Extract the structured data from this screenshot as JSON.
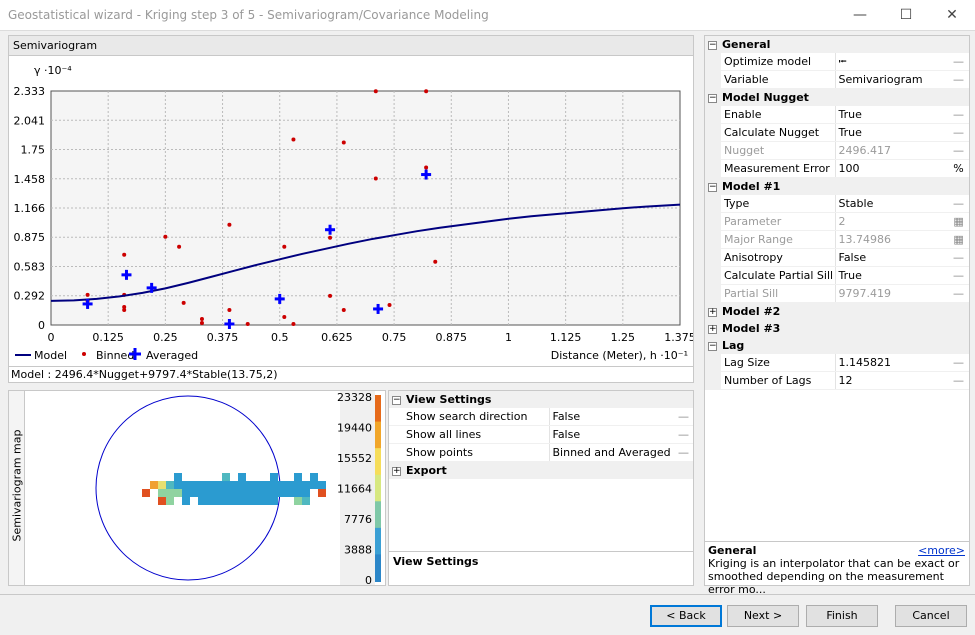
{
  "window": {
    "title": "Geostatistical wizard - Kriging step 3 of 5 - Semivariogram/Covariance Modeling"
  },
  "chart_panel": {
    "title": "Semivariogram"
  },
  "chart_data": {
    "type": "scatter",
    "title": "Semivariogram",
    "ylabel": "γ ·10⁻⁴",
    "xlabel": "Distance (Meter), h ·10⁻¹",
    "xlim": [
      0,
      1.375
    ],
    "ylim": [
      0,
      2.333
    ],
    "x_ticks": [
      "0",
      "0.125",
      "0.25",
      "0.375",
      "0.5",
      "0.625",
      "0.75",
      "0.875",
      "1",
      "1.125",
      "1.25",
      "1.375"
    ],
    "y_ticks": [
      "0",
      "0.292",
      "0.583",
      "0.875",
      "1.166",
      "1.458",
      "1.75",
      "2.041",
      "2.333"
    ],
    "x_tick_values": [
      0,
      0.125,
      0.25,
      0.375,
      0.5,
      0.625,
      0.75,
      0.875,
      1,
      1.125,
      1.25,
      1.375
    ],
    "y_tick_values": [
      0,
      0.292,
      0.583,
      0.875,
      1.166,
      1.458,
      1.75,
      2.041,
      2.333
    ],
    "grid": true,
    "legend_items": [
      "Model",
      "Binned",
      "Averaged"
    ],
    "binned": [
      [
        0.08,
        0.3
      ],
      [
        0.08,
        0.24
      ],
      [
        0.16,
        0.7
      ],
      [
        0.16,
        0.3
      ],
      [
        0.16,
        0.18
      ],
      [
        0.16,
        0.15
      ],
      [
        0.25,
        0.88
      ],
      [
        0.28,
        0.78
      ],
      [
        0.29,
        0.22
      ],
      [
        0.33,
        0.06
      ],
      [
        0.33,
        0.02
      ],
      [
        0.39,
        1.0
      ],
      [
        0.39,
        0.15
      ],
      [
        0.43,
        0.01
      ],
      [
        0.51,
        0.78
      ],
      [
        0.51,
        0.08
      ],
      [
        0.53,
        1.85
      ],
      [
        0.53,
        0.01
      ],
      [
        0.61,
        0.87
      ],
      [
        0.61,
        0.29
      ],
      [
        0.64,
        1.82
      ],
      [
        0.64,
        0.15
      ],
      [
        0.71,
        2.33
      ],
      [
        0.71,
        1.46
      ],
      [
        0.74,
        0.2
      ],
      [
        0.82,
        2.33
      ],
      [
        0.82,
        1.57
      ],
      [
        0.84,
        0.63
      ]
    ],
    "averaged": [
      [
        0.08,
        0.21
      ],
      [
        0.165,
        0.5
      ],
      [
        0.22,
        0.37
      ],
      [
        0.39,
        0.01
      ],
      [
        0.5,
        0.26
      ],
      [
        0.61,
        0.95
      ],
      [
        0.715,
        0.16
      ],
      [
        0.82,
        1.5
      ]
    ],
    "model_curve": [
      [
        0,
        0.24
      ],
      [
        0.05,
        0.245
      ],
      [
        0.1,
        0.26
      ],
      [
        0.15,
        0.285
      ],
      [
        0.2,
        0.32
      ],
      [
        0.25,
        0.365
      ],
      [
        0.3,
        0.42
      ],
      [
        0.35,
        0.48
      ],
      [
        0.4,
        0.54
      ],
      [
        0.45,
        0.6
      ],
      [
        0.5,
        0.655
      ],
      [
        0.55,
        0.71
      ],
      [
        0.6,
        0.76
      ],
      [
        0.65,
        0.81
      ],
      [
        0.7,
        0.855
      ],
      [
        0.75,
        0.895
      ],
      [
        0.8,
        0.935
      ],
      [
        0.85,
        0.97
      ],
      [
        0.9,
        1.0
      ],
      [
        0.95,
        1.03
      ],
      [
        1.0,
        1.06
      ],
      [
        1.05,
        1.085
      ],
      [
        1.1,
        1.105
      ],
      [
        1.15,
        1.125
      ],
      [
        1.2,
        1.145
      ],
      [
        1.25,
        1.165
      ],
      [
        1.3,
        1.18
      ],
      [
        1.375,
        1.2
      ]
    ],
    "colors": {
      "model": "#00007f",
      "binned": "#cc0000",
      "averaged": "#0000ff"
    }
  },
  "model_equation": "Model : 2496.4*Nugget+9797.4*Stable(13.75,2)",
  "semivariogram_map": {
    "label": "Semivariogram map",
    "scale_labels": [
      "23328",
      "19440",
      "15552",
      "11664",
      "7776",
      "3888",
      "0"
    ],
    "scale_colors": [
      "#e66a1a",
      "#f1a62a",
      "#f6dd5a",
      "#d7e880",
      "#7fc8a8",
      "#3a9fd4",
      "#2b86c8"
    ],
    "cells": [
      [
        null,
        null,
        null,
        null,
        null,
        null,
        null,
        null,
        null,
        null,
        null,
        null,
        null,
        null,
        null,
        null,
        null,
        null,
        null,
        null,
        null,
        null,
        null,
        null,
        null,
        null,
        null,
        null,
        null
      ],
      [
        null,
        null,
        null,
        null,
        null,
        null,
        null,
        null,
        null,
        null,
        null,
        null,
        null,
        null,
        null,
        null,
        null,
        null,
        null,
        null,
        null,
        null,
        null,
        null,
        null,
        null,
        null,
        null,
        null
      ],
      [
        null,
        null,
        null,
        null,
        null,
        null,
        null,
        null,
        null,
        null,
        null,
        null,
        null,
        null,
        null,
        null,
        null,
        null,
        null,
        null,
        null,
        null,
        null,
        null,
        null,
        null,
        null,
        null,
        null
      ],
      [
        null,
        null,
        null,
        null,
        null,
        null,
        null,
        null,
        null,
        null,
        null,
        null,
        null,
        null,
        null,
        null,
        null,
        null,
        null,
        null,
        null,
        null,
        null,
        null,
        null,
        null,
        null,
        null,
        null
      ]
    ]
  },
  "view_settings": {
    "category": "View Settings",
    "rows": [
      {
        "name": "Show search direction",
        "value": "False"
      },
      {
        "name": "Show all lines",
        "value": "False"
      },
      {
        "name": "Show points",
        "value": "Binned and Averaged"
      }
    ],
    "export": "Export",
    "description_title": "View Settings"
  },
  "properties": {
    "general": {
      "title": "General",
      "rows": [
        {
          "name": "Optimize model",
          "value": ""
        },
        {
          "name": "Variable",
          "value": "Semivariogram"
        }
      ]
    },
    "nugget": {
      "title": "Model Nugget",
      "rows": [
        {
          "name": "Enable",
          "value": "True"
        },
        {
          "name": "Calculate Nugget",
          "value": "True"
        },
        {
          "name": "Nugget",
          "value": "2496.417"
        },
        {
          "name": "Measurement Error",
          "value": "100",
          "unit": "%"
        }
      ]
    },
    "model1": {
      "title": "Model #1",
      "rows": [
        {
          "name": "Type",
          "value": "Stable"
        },
        {
          "name": "Parameter",
          "value": "2"
        },
        {
          "name": "Major Range",
          "value": "13.74986"
        },
        {
          "name": "Anisotropy",
          "value": "False"
        },
        {
          "name": "Calculate Partial Sill",
          "value": "True"
        },
        {
          "name": "Partial Sill",
          "value": "9797.419"
        }
      ]
    },
    "model2": {
      "title": "Model #2"
    },
    "model3": {
      "title": "Model #3"
    },
    "lag": {
      "title": "Lag",
      "rows": [
        {
          "name": "Lag Size",
          "value": "1.145821"
        },
        {
          "name": "Number of Lags",
          "value": "12"
        }
      ]
    },
    "description": {
      "title": "General",
      "more": "<more>",
      "text": "Kriging is an interpolator that can be exact or smoothed depending on the measurement error mo..."
    }
  },
  "buttons": {
    "back": "< Back",
    "next": "Next >",
    "finish": "Finish",
    "cancel": "Cancel"
  }
}
